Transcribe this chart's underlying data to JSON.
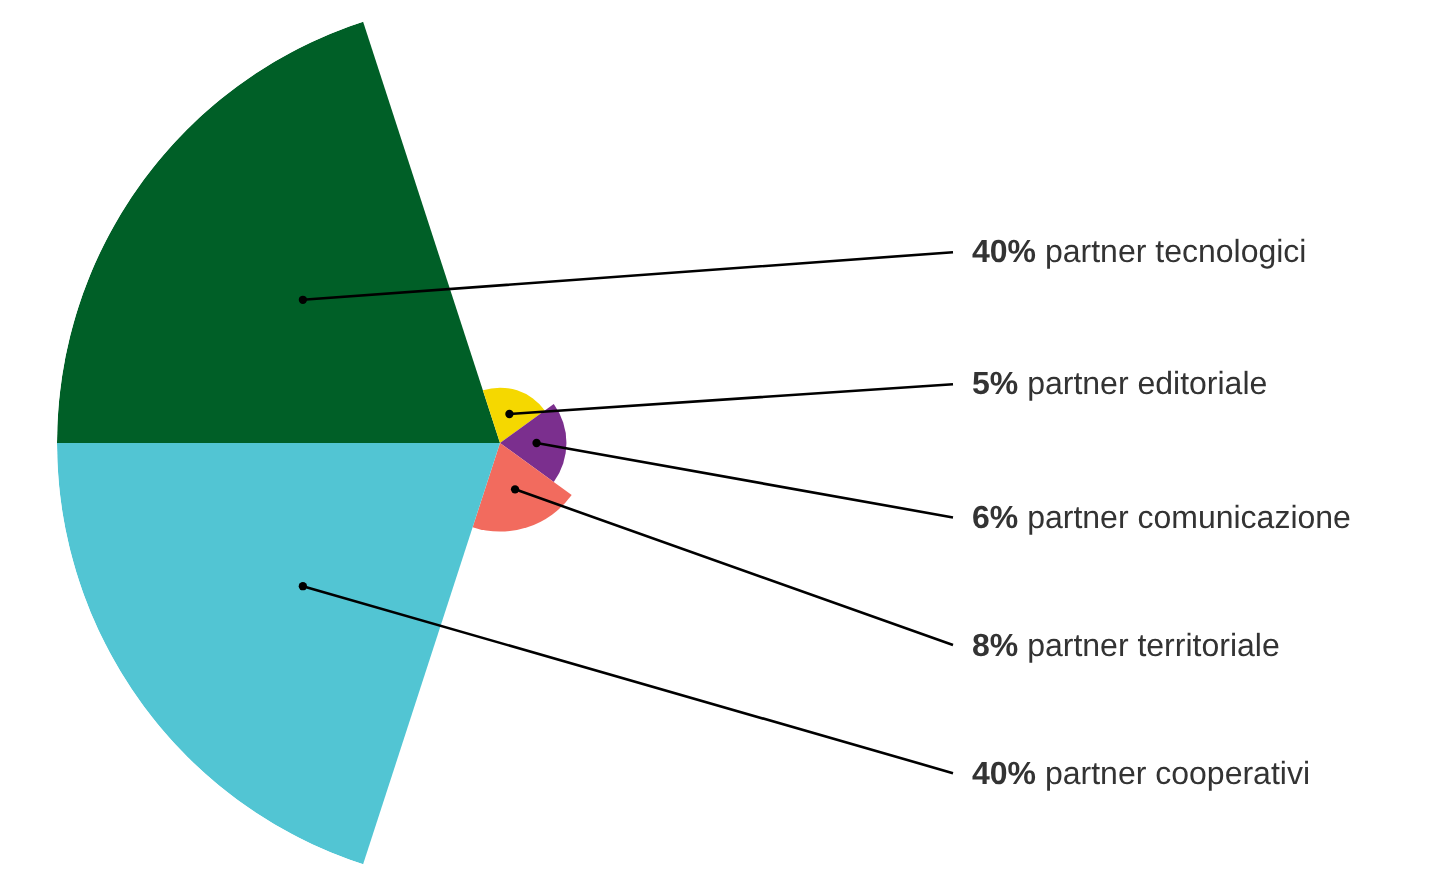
{
  "chart_data": {
    "type": "other",
    "categories": [
      "partner tecnologici",
      "partner editoriale",
      "partner comunicazione",
      "partner territoriale",
      "partner cooperativi"
    ],
    "values": [
      40,
      5,
      6,
      8,
      40
    ],
    "value_labels": [
      "40%",
      "5%",
      "6%",
      "8%",
      "40%"
    ],
    "colors": [
      "#005f27",
      "#f5d800",
      "#7b2f8e",
      "#f26b5e",
      "#52c5d3"
    ]
  }
}
